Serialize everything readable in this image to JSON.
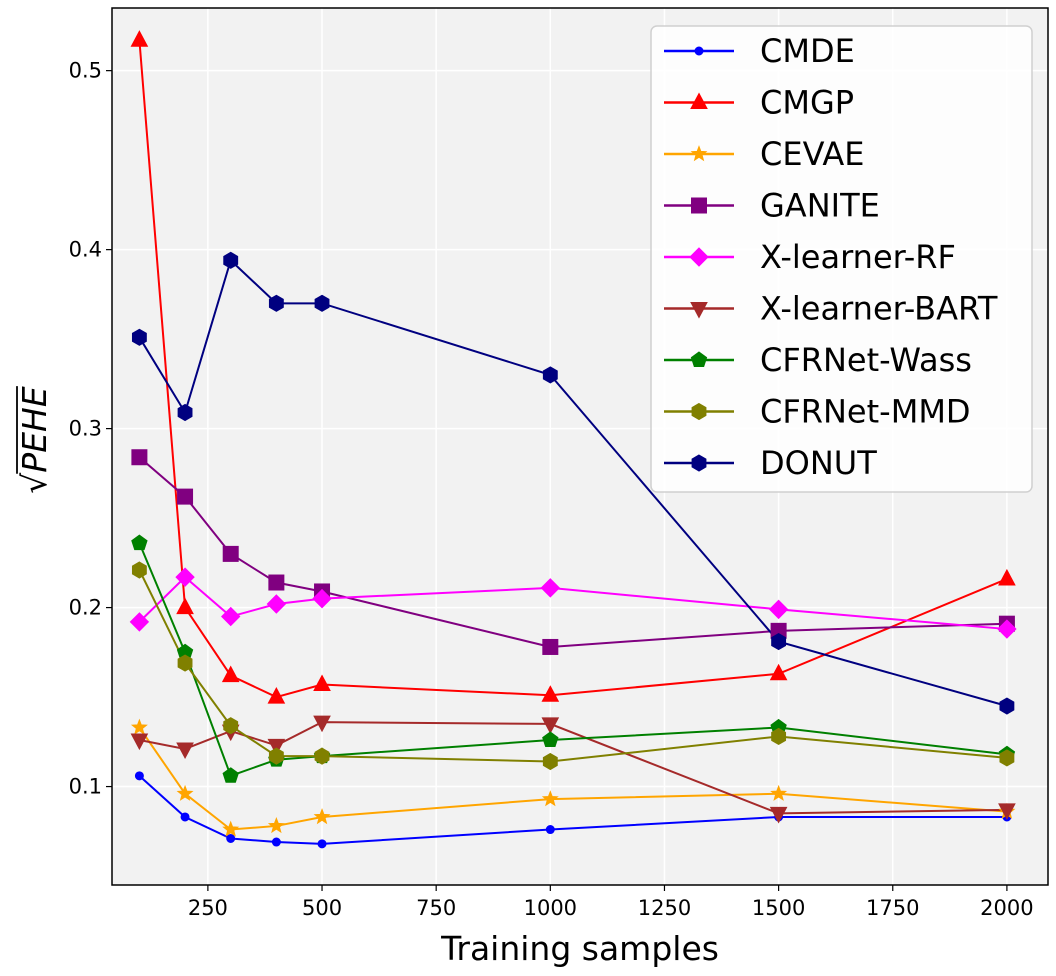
{
  "chart_data": {
    "type": "line",
    "title": "",
    "xlabel": "Training samples",
    "ylabel": "PEHE",
    "ylabel_display": "√PEHE",
    "xlim": [
      40,
      2090
    ],
    "ylim": [
      0.045,
      0.535
    ],
    "x_ticks": [
      250,
      500,
      750,
      1000,
      1250,
      1500,
      1750,
      2000
    ],
    "x_tick_labels": [
      "250",
      "500",
      "750",
      "1000",
      "1250",
      "1500",
      "1750",
      "2000"
    ],
    "y_ticks": [
      0.1,
      0.2,
      0.3,
      0.4,
      0.5
    ],
    "y_tick_labels": [
      "0.1",
      "0.2",
      "0.3",
      "0.4",
      "0.5"
    ],
    "grid": true,
    "legend_position": "top-right",
    "x": [
      100,
      200,
      300,
      400,
      500,
      1000,
      1500,
      2000
    ],
    "series": [
      {
        "name": "CMDE",
        "color": "#0000ff",
        "marker": "circle",
        "values": [
          0.106,
          0.083,
          0.071,
          0.069,
          0.068,
          0.076,
          0.083,
          0.083
        ]
      },
      {
        "name": "CMGP",
        "color": "#ff0000",
        "marker": "triangle-up",
        "values": [
          0.517,
          0.2,
          0.162,
          0.15,
          0.157,
          0.151,
          0.163,
          0.216
        ]
      },
      {
        "name": "CEVAE",
        "color": "#ffa500",
        "marker": "star",
        "values": [
          0.133,
          0.096,
          0.076,
          0.078,
          0.083,
          0.093,
          0.096,
          0.086
        ]
      },
      {
        "name": "GANITE",
        "color": "#800080",
        "marker": "square",
        "values": [
          0.284,
          0.262,
          0.23,
          0.214,
          0.209,
          0.178,
          0.187,
          0.191
        ]
      },
      {
        "name": "X-learner-RF",
        "color": "#ff00ff",
        "marker": "diamond",
        "values": [
          0.192,
          0.217,
          0.195,
          0.202,
          0.205,
          0.211,
          0.199,
          0.188
        ]
      },
      {
        "name": "X-learner-BART",
        "color": "#a52a2a",
        "marker": "triangle-down",
        "values": [
          0.126,
          0.121,
          0.131,
          0.123,
          0.136,
          0.135,
          0.085,
          0.087
        ]
      },
      {
        "name": "CFRNet-Wass",
        "color": "#008000",
        "marker": "pentagon",
        "values": [
          0.236,
          0.175,
          0.106,
          0.115,
          0.117,
          0.126,
          0.133,
          0.118
        ]
      },
      {
        "name": "CFRNet-MMD",
        "color": "#808000",
        "marker": "hexagon",
        "values": [
          0.221,
          0.169,
          0.134,
          0.117,
          0.117,
          0.114,
          0.128,
          0.116
        ]
      },
      {
        "name": "DONUT",
        "color": "#000080",
        "marker": "hexagon",
        "values": [
          0.351,
          0.309,
          0.394,
          0.37,
          0.37,
          0.33,
          0.181,
          0.145
        ]
      }
    ]
  }
}
